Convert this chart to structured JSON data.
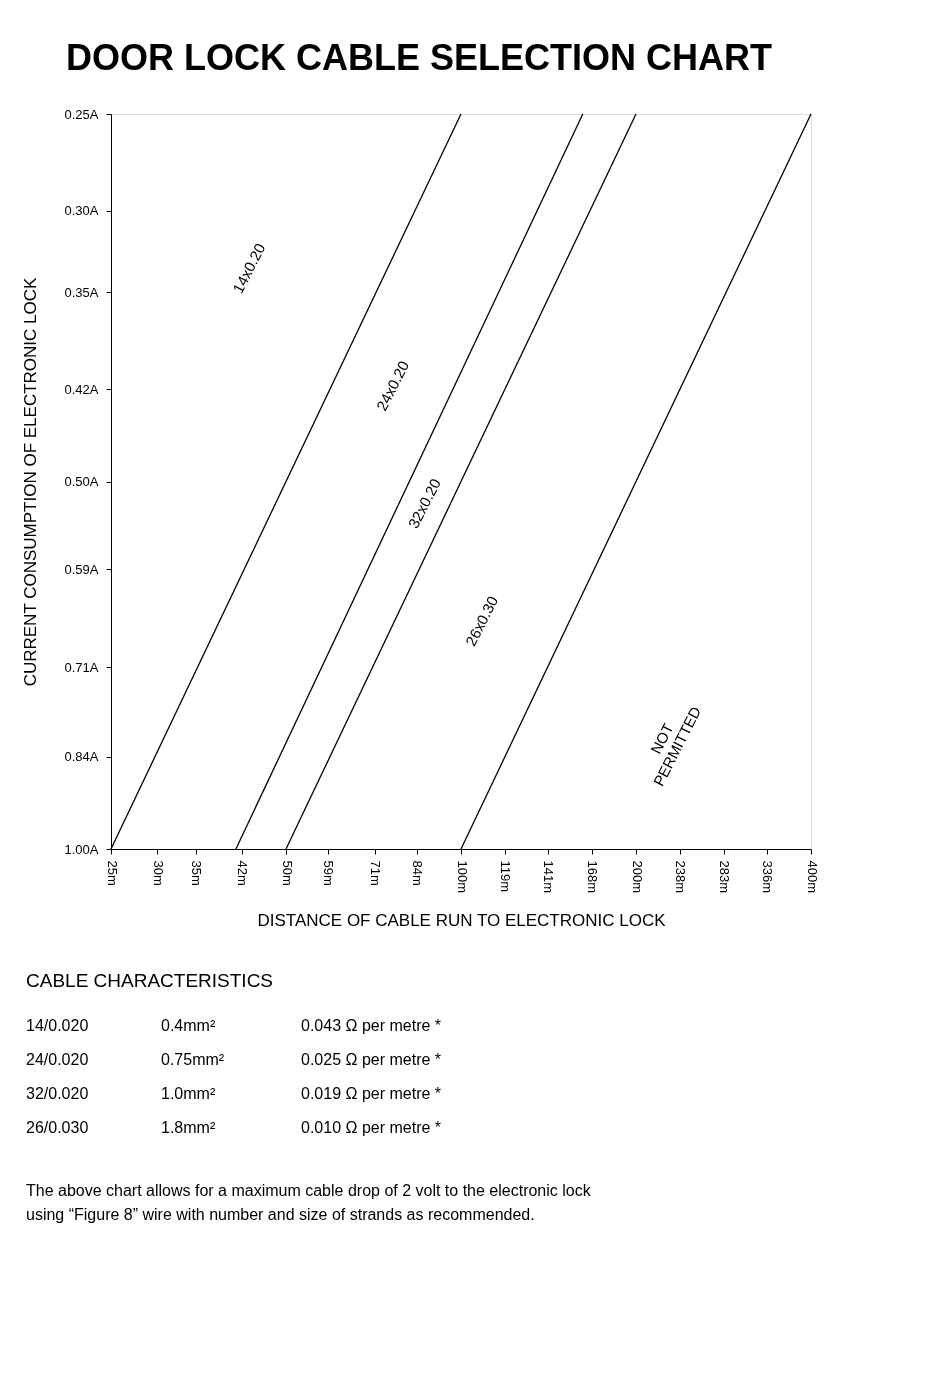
{
  "chart_data": {
    "type": "line",
    "title": "DOOR LOCK CABLE SELECTION CHART",
    "xlabel": "DISTANCE OF CABLE RUN TO ELECTRONIC LOCK",
    "ylabel": "CURRENT CONSUMPTION OF ELECTRONIC LOCK",
    "log": "xy",
    "grid": false,
    "marker": "none",
    "xlim": [
      25,
      400
    ],
    "xticks": [
      {
        "value": 25,
        "label": "25m"
      },
      {
        "value": 30,
        "label": "30m"
      },
      {
        "value": 35,
        "label": "35m"
      },
      {
        "value": 42,
        "label": "42m"
      },
      {
        "value": 50,
        "label": "50m"
      },
      {
        "value": 59,
        "label": "59m"
      },
      {
        "value": 71,
        "label": "71m"
      },
      {
        "value": 84,
        "label": "84m"
      },
      {
        "value": 100,
        "label": "100m"
      },
      {
        "value": 119,
        "label": "119m"
      },
      {
        "value": 141,
        "label": "141m"
      },
      {
        "value": 168,
        "label": "168m"
      },
      {
        "value": 200,
        "label": "200m"
      },
      {
        "value": 238,
        "label": "238m"
      },
      {
        "value": 283,
        "label": "283m"
      },
      {
        "value": 336,
        "label": "336m"
      },
      {
        "value": 400,
        "label": "400m"
      }
    ],
    "ylim": [
      1.0,
      0.25
    ],
    "yticks": [
      {
        "value": 0.25,
        "label": "0.25A"
      },
      {
        "value": 0.3,
        "label": "0.30A"
      },
      {
        "value": 0.35,
        "label": "0.35A"
      },
      {
        "value": 0.42,
        "label": "0.42A"
      },
      {
        "value": 0.5,
        "label": "0.50A"
      },
      {
        "value": 0.59,
        "label": "0.59A"
      },
      {
        "value": 0.71,
        "label": "0.71A"
      },
      {
        "value": 0.84,
        "label": "0.84A"
      },
      {
        "value": 1.0,
        "label": "1.00A"
      }
    ],
    "series": [
      {
        "color": "#000000",
        "x": [
          25,
          100
        ],
        "values": [
          1.0,
          0.25
        ]
      },
      {
        "color": "#000000",
        "x": [
          41,
          162
        ],
        "values": [
          1.0,
          0.25
        ]
      },
      {
        "color": "#000000",
        "x": [
          50,
          200
        ],
        "values": [
          1.0,
          0.25
        ]
      },
      {
        "color": "#000000",
        "x": [
          100,
          400
        ],
        "values": [
          1.0,
          0.25
        ]
      }
    ],
    "annotations": [
      "14x0.20",
      "24x0.20",
      "32x0.20",
      "26x0.30",
      "NOT PERMITTED",
      "CABLE CHARACTERISTICS",
      "14/0.020",
      "0.4mm²",
      "0.043 Ω per metre *",
      "24/0.020",
      "0.75mm²",
      "0.025 Ω per metre *",
      "32/0.020",
      "1.0mm²",
      "0.019 Ω per metre *",
      "26/0.030",
      "1.8mm²",
      "0.010 Ω per metre *",
      "The above chart allows for a maximum cable drop of 2 volt to the electronic lock",
      "using “Figure 8” wire with number and size of strands as recommended."
    ]
  }
}
